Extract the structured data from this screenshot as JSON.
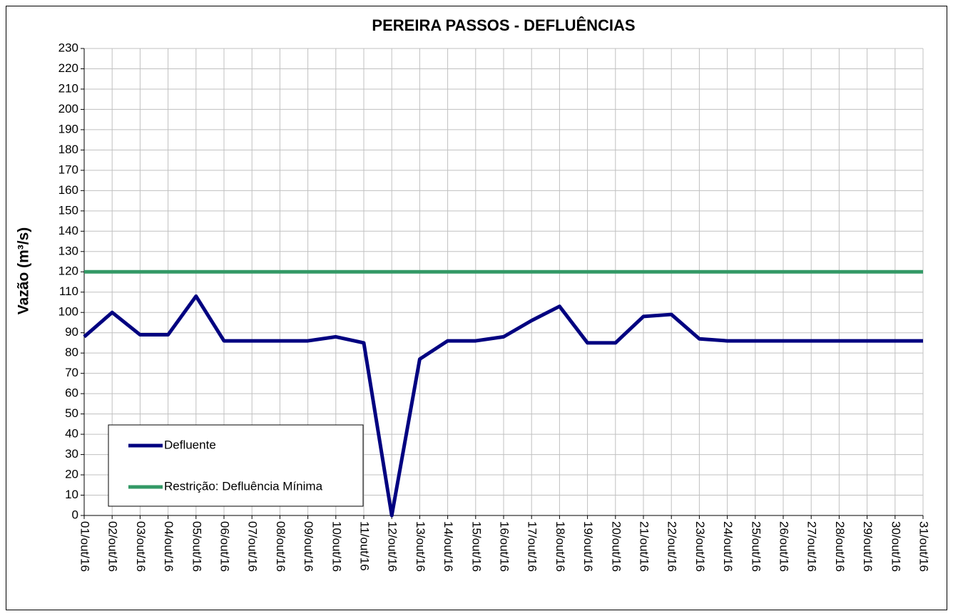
{
  "chart_data": {
    "type": "line",
    "title": "PEREIRA PASSOS - DEFLUÊNCIAS",
    "y_label": "Vazão (m³/s)",
    "categories": [
      "01/out/16",
      "02/out/16",
      "03/out/16",
      "04/out/16",
      "05/out/16",
      "06/out/16",
      "07/out/16",
      "08/out/16",
      "09/out/16",
      "10/out/16",
      "11/out/16",
      "12/out/16",
      "13/out/16",
      "14/out/16",
      "15/out/16",
      "16/out/16",
      "17/out/16",
      "18/out/16",
      "19/out/16",
      "20/out/16",
      "21/out/16",
      "22/out/16",
      "23/out/16",
      "24/out/16",
      "25/out/16",
      "26/out/16",
      "27/out/16",
      "28/out/16",
      "29/out/16",
      "30/out/16",
      "31/out/16"
    ],
    "series": [
      {
        "name": "Defluente",
        "color": "#000080",
        "values": [
          88,
          100,
          89,
          89,
          108,
          86,
          86,
          86,
          86,
          88,
          85,
          0,
          77,
          86,
          86,
          88,
          96,
          103,
          85,
          85,
          98,
          99,
          87,
          86,
          86,
          86,
          86,
          86,
          86,
          86,
          86
        ]
      },
      {
        "name": "Restrição: Defluência Mínima",
        "color": "#339966",
        "values": [
          120,
          120,
          120,
          120,
          120,
          120,
          120,
          120,
          120,
          120,
          120,
          120,
          120,
          120,
          120,
          120,
          120,
          120,
          120,
          120,
          120,
          120,
          120,
          120,
          120,
          120,
          120,
          120,
          120,
          120,
          120
        ]
      }
    ],
    "ylim": [
      0,
      230
    ],
    "yticks": [
      0,
      10,
      20,
      30,
      40,
      50,
      60,
      70,
      80,
      90,
      100,
      110,
      120,
      130,
      140,
      150,
      160,
      170,
      180,
      190,
      200,
      210,
      220,
      230
    ],
    "grid": true,
    "legend": "lower-left"
  }
}
